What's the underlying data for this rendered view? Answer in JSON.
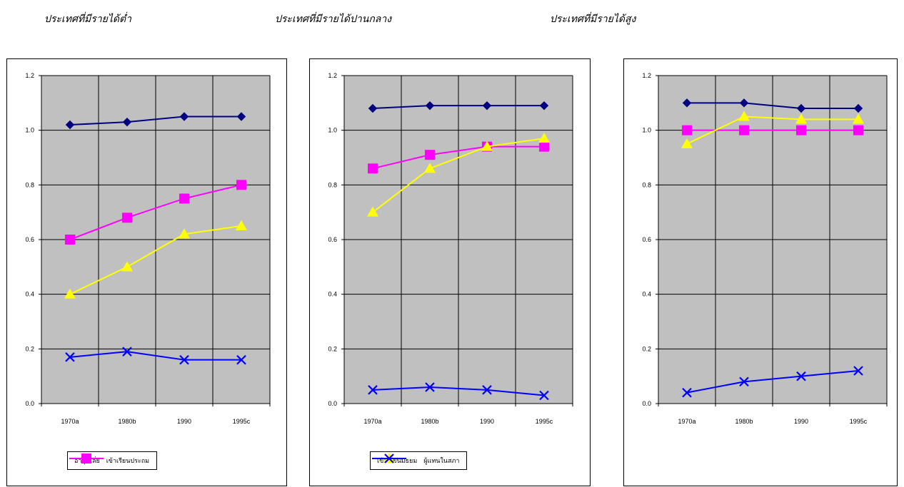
{
  "titles": {
    "low": "ประเทศที่มีรายได้ต่ำ",
    "middle": "ประเทศที่มีรายได้ปานกลาง",
    "high": "ประเทศที่มีรายได้สูง"
  },
  "legends": {
    "left": [
      {
        "label": "อายุเฉลี่ย",
        "color": "#000080",
        "marker": "diamond"
      },
      {
        "label": "เข้าเรียนประถม",
        "color": "#FF00FF",
        "marker": "square"
      }
    ],
    "middle": [
      {
        "label": "เข้าเรียนมัธยม",
        "color": "#FFFF00",
        "marker": "triangle"
      },
      {
        "label": "ผู้แทนในสภา",
        "color": "#0000FF",
        "marker": "x"
      }
    ]
  },
  "colors": {
    "plot_bg": "#C0C0C0",
    "life": "#000080",
    "primary": "#FF00FF",
    "secondary": "#FFFF00",
    "parliament": "#0000FF"
  },
  "chart_data": [
    {
      "type": "line",
      "title": "ประเทศที่มีรายได้ต่ำ",
      "categories": [
        "1970a",
        "1980b",
        "1990",
        "1995c"
      ],
      "yticks": [
        "0.0",
        "0.2",
        "0.4",
        "0.6",
        "0.8",
        "1.0",
        "1.2"
      ],
      "ylim": [
        0,
        1.2
      ],
      "grid": true,
      "series": [
        {
          "name": "อายุเฉลี่ย",
          "color": "#000080",
          "marker": "diamond",
          "values": [
            1.02,
            1.03,
            1.05,
            1.05
          ]
        },
        {
          "name": "เข้าเรียนประถม",
          "color": "#FF00FF",
          "marker": "square",
          "values": [
            0.6,
            0.68,
            0.75,
            0.8
          ]
        },
        {
          "name": "เข้าเรียนมัธยม",
          "color": "#FFFF00",
          "marker": "triangle",
          "values": [
            0.4,
            0.5,
            0.62,
            0.65
          ]
        },
        {
          "name": "ผู้แทนในสภา",
          "color": "#0000FF",
          "marker": "x",
          "values": [
            0.17,
            0.19,
            0.16,
            0.16
          ]
        }
      ]
    },
    {
      "type": "line",
      "title": "ประเทศที่มีรายได้ปานกลาง",
      "categories": [
        "1970a",
        "1980b",
        "1990",
        "1995c"
      ],
      "yticks": [
        "0.0",
        "0.2",
        "0.4",
        "0.6",
        "0.8",
        "1.0",
        "1.2"
      ],
      "ylim": [
        0,
        1.2
      ],
      "grid": true,
      "series": [
        {
          "name": "อายุเฉลี่ย",
          "color": "#000080",
          "marker": "diamond",
          "values": [
            1.08,
            1.09,
            1.09,
            1.09
          ]
        },
        {
          "name": "เข้าเรียนประถม",
          "color": "#FF00FF",
          "marker": "square",
          "values": [
            0.86,
            0.91,
            0.94,
            0.94
          ]
        },
        {
          "name": "เข้าเรียนมัธยม",
          "color": "#FFFF00",
          "marker": "triangle",
          "values": [
            0.7,
            0.86,
            0.94,
            0.97
          ]
        },
        {
          "name": "ผู้แทนในสภา",
          "color": "#0000FF",
          "marker": "x",
          "values": [
            0.05,
            0.06,
            0.05,
            0.03
          ]
        }
      ]
    },
    {
      "type": "line",
      "title": "ประเทศที่มีรายได้สูง",
      "categories": [
        "1970a",
        "1980b",
        "1990",
        "1995c"
      ],
      "yticks": [
        "0.0",
        "0.2",
        "0.4",
        "0.6",
        "0.8",
        "1.0",
        "1.2"
      ],
      "ylim": [
        0,
        1.2
      ],
      "grid": true,
      "series": [
        {
          "name": "อายุเฉลี่ย",
          "color": "#000080",
          "marker": "diamond",
          "values": [
            1.1,
            1.1,
            1.08,
            1.08
          ]
        },
        {
          "name": "เข้าเรียนประถม",
          "color": "#FF00FF",
          "marker": "square",
          "values": [
            1.0,
            1.0,
            1.0,
            1.0
          ]
        },
        {
          "name": "เข้าเรียนมัธยม",
          "color": "#FFFF00",
          "marker": "triangle",
          "values": [
            0.95,
            1.05,
            1.04,
            1.04
          ]
        },
        {
          "name": "ผู้แทนในสภา",
          "color": "#0000FF",
          "marker": "x",
          "values": [
            0.04,
            0.08,
            0.1,
            0.12
          ]
        }
      ]
    }
  ]
}
